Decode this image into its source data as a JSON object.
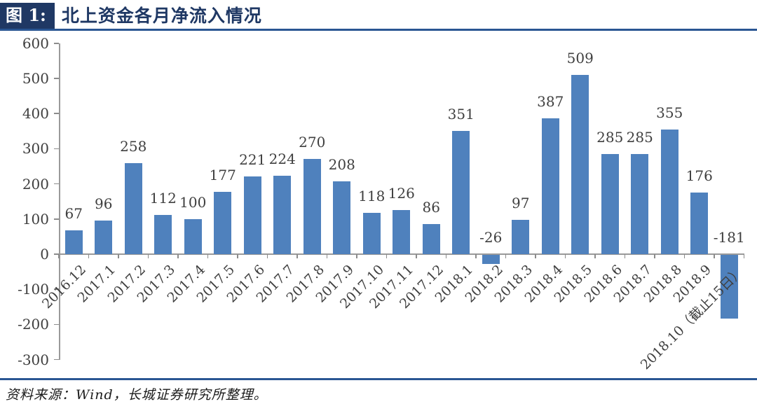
{
  "header": {
    "figure_label": "图 1:",
    "title": "北上资金各月净流入情况"
  },
  "footer": {
    "source": "资料来源：Wind，长城证券研究所整理。"
  },
  "colors": {
    "bar": "#4f81bd",
    "header_box": "#1f3864",
    "title_text": "#1f3864",
    "rule_blue": "#2a5693",
    "axis_line": "#9a9a9a",
    "label_text": "#3f3f3f"
  },
  "chart_data": {
    "type": "bar",
    "title": "北上资金各月净流入情况",
    "categories": [
      "2016.12",
      "2017.1",
      "2017.2",
      "2017.3",
      "2017.4",
      "2017.5",
      "2017.6",
      "2017.7",
      "2017.8",
      "2017.9",
      "2017.10",
      "2017.11",
      "2017.12",
      "2018.1",
      "2018.2",
      "2018.3",
      "2018.4",
      "2018.5",
      "2018.6",
      "2018.7",
      "2018.8",
      "2018.9",
      "2018.10（截止15日）"
    ],
    "values": [
      67,
      96,
      258,
      112,
      100,
      177,
      221,
      224,
      270,
      208,
      118,
      126,
      86,
      351,
      -26,
      97,
      387,
      509,
      285,
      285,
      355,
      176,
      -181
    ],
    "value_labels": [
      "67",
      "96",
      "258",
      "112",
      "100",
      "177",
      "221",
      "224",
      "270",
      "208",
      "118",
      "126",
      "86",
      "351",
      "-26",
      "97",
      "387",
      "509",
      "285",
      "285",
      "355",
      "176",
      "-181"
    ],
    "xlabel": "",
    "ylabel": "",
    "ylim": [
      -300,
      600
    ],
    "y_tick_step": 100,
    "y_tick_labels": [
      "600",
      "500",
      "400",
      "300",
      "200",
      "100",
      "0",
      "-100",
      "-200",
      "-300"
    ],
    "grid": false,
    "legend": "none",
    "bar_color": "#4f81bd",
    "data_labels": "outside-end"
  }
}
